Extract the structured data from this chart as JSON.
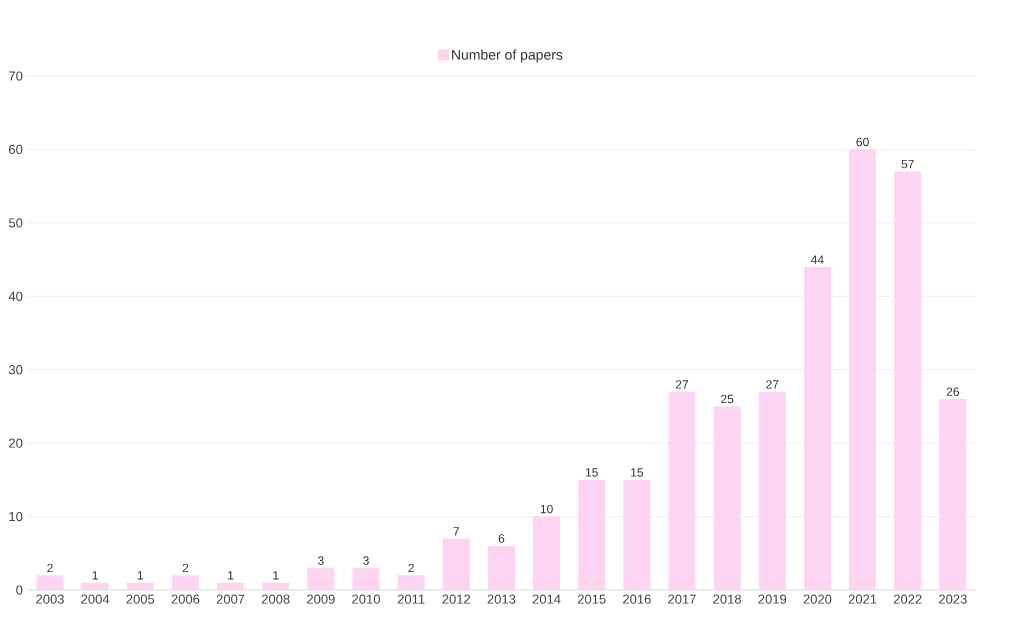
{
  "chart_data": {
    "type": "bar",
    "categories": [
      "2003",
      "2004",
      "2005",
      "2006",
      "2007",
      "2008",
      "2009",
      "2010",
      "2011",
      "2012",
      "2013",
      "2014",
      "2015",
      "2016",
      "2017",
      "2018",
      "2019",
      "2020",
      "2021",
      "2022",
      "2023"
    ],
    "series": [
      {
        "name": "Number of papers",
        "color": "#fdd5f3",
        "values": [
          2,
          1,
          1,
          2,
          1,
          1,
          3,
          3,
          2,
          7,
          6,
          10,
          15,
          15,
          27,
          25,
          27,
          44,
          60,
          57,
          26
        ]
      }
    ],
    "ylim": [
      0,
      70
    ],
    "yticks": [
      0,
      10,
      20,
      30,
      40,
      50,
      60,
      70
    ],
    "grid": "y",
    "legend": "top",
    "data_labels": true
  }
}
